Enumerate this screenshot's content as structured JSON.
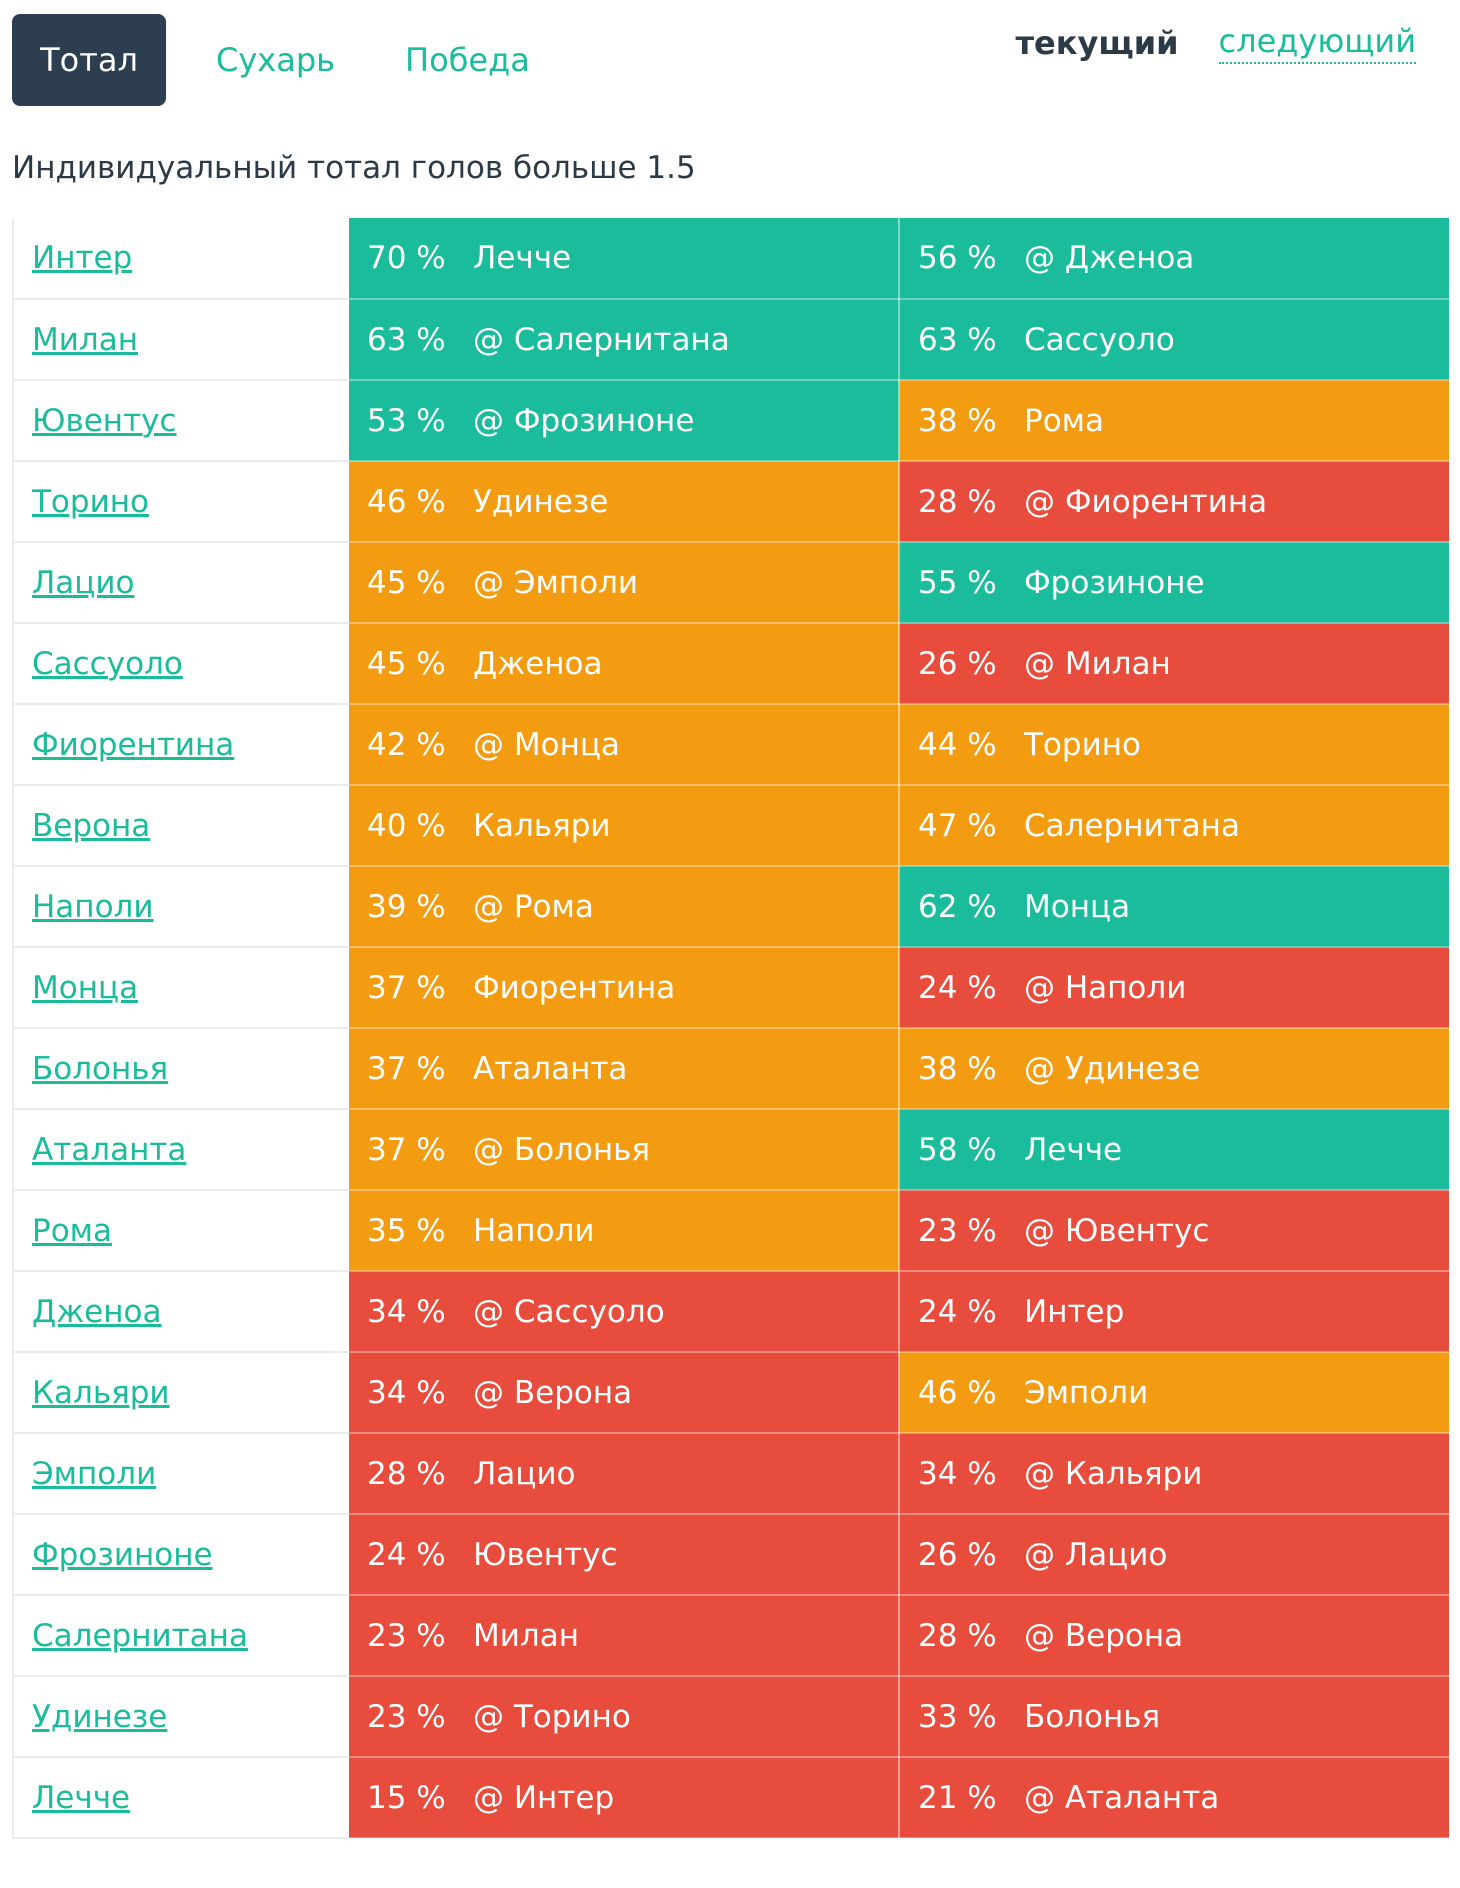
{
  "tabs": [
    {
      "label": "Тотал",
      "active": true
    },
    {
      "label": "Сухарь",
      "active": false
    },
    {
      "label": "Победа",
      "active": false
    }
  ],
  "round": {
    "current": "текущий",
    "next": "следующий"
  },
  "subtitle": "Индивидуальный тотал голов больше 1.5",
  "colors": {
    "green": "#1abc9c",
    "orange": "#f39c12",
    "red": "#e74c3c",
    "dark": "#2c3e50"
  },
  "rows": [
    {
      "team": "Интер",
      "cur_pct": "70 %",
      "cur_opp": "Лечче",
      "cur_color": "green",
      "next_pct": "56 %",
      "next_opp": "@ Дженоа",
      "next_color": "green"
    },
    {
      "team": "Милан",
      "cur_pct": "63 %",
      "cur_opp": "@ Салернитана",
      "cur_color": "green",
      "next_pct": "63 %",
      "next_opp": "Сассуоло",
      "next_color": "green"
    },
    {
      "team": "Ювентус",
      "cur_pct": "53 %",
      "cur_opp": "@ Фрозиноне",
      "cur_color": "green",
      "next_pct": "38 %",
      "next_opp": "Рома",
      "next_color": "orange"
    },
    {
      "team": "Торино",
      "cur_pct": "46 %",
      "cur_opp": "Удинезе",
      "cur_color": "orange",
      "next_pct": "28 %",
      "next_opp": "@ Фиорентина",
      "next_color": "red"
    },
    {
      "team": "Лацио",
      "cur_pct": "45 %",
      "cur_opp": "@ Эмполи",
      "cur_color": "orange",
      "next_pct": "55 %",
      "next_opp": "Фрозиноне",
      "next_color": "green"
    },
    {
      "team": "Сассуоло",
      "cur_pct": "45 %",
      "cur_opp": "Дженоа",
      "cur_color": "orange",
      "next_pct": "26 %",
      "next_opp": "@ Милан",
      "next_color": "red"
    },
    {
      "team": "Фиорентина",
      "cur_pct": "42 %",
      "cur_opp": "@ Монца",
      "cur_color": "orange",
      "next_pct": "44 %",
      "next_opp": "Торино",
      "next_color": "orange"
    },
    {
      "team": "Верона",
      "cur_pct": "40 %",
      "cur_opp": "Кальяри",
      "cur_color": "orange",
      "next_pct": "47 %",
      "next_opp": "Салернитана",
      "next_color": "orange"
    },
    {
      "team": "Наполи",
      "cur_pct": "39 %",
      "cur_opp": "@ Рома",
      "cur_color": "orange",
      "next_pct": "62 %",
      "next_opp": "Монца",
      "next_color": "green"
    },
    {
      "team": "Монца",
      "cur_pct": "37 %",
      "cur_opp": "Фиорентина",
      "cur_color": "orange",
      "next_pct": "24 %",
      "next_opp": "@ Наполи",
      "next_color": "red"
    },
    {
      "team": "Болонья",
      "cur_pct": "37 %",
      "cur_opp": "Аталанта",
      "cur_color": "orange",
      "next_pct": "38 %",
      "next_opp": "@ Удинезе",
      "next_color": "orange"
    },
    {
      "team": "Аталанта",
      "cur_pct": "37 %",
      "cur_opp": "@ Болонья",
      "cur_color": "orange",
      "next_pct": "58 %",
      "next_opp": "Лечче",
      "next_color": "green"
    },
    {
      "team": "Рома",
      "cur_pct": "35 %",
      "cur_opp": "Наполи",
      "cur_color": "orange",
      "next_pct": "23 %",
      "next_opp": "@ Ювентус",
      "next_color": "red"
    },
    {
      "team": "Дженоа",
      "cur_pct": "34 %",
      "cur_opp": "@ Сассуоло",
      "cur_color": "red",
      "next_pct": "24 %",
      "next_opp": "Интер",
      "next_color": "red"
    },
    {
      "team": "Кальяри",
      "cur_pct": "34 %",
      "cur_opp": "@ Верона",
      "cur_color": "red",
      "next_pct": "46 %",
      "next_opp": "Эмполи",
      "next_color": "orange"
    },
    {
      "team": "Эмполи",
      "cur_pct": "28 %",
      "cur_opp": "Лацио",
      "cur_color": "red",
      "next_pct": "34 %",
      "next_opp": "@ Кальяри",
      "next_color": "red"
    },
    {
      "team": "Фрозиноне",
      "cur_pct": "24 %",
      "cur_opp": "Ювентус",
      "cur_color": "red",
      "next_pct": "26 %",
      "next_opp": "@ Лацио",
      "next_color": "red"
    },
    {
      "team": "Салернитана",
      "cur_pct": "23 %",
      "cur_opp": "Милан",
      "cur_color": "red",
      "next_pct": "28 %",
      "next_opp": "@ Верона",
      "next_color": "red"
    },
    {
      "team": "Удинезе",
      "cur_pct": "23 %",
      "cur_opp": "@ Торино",
      "cur_color": "red",
      "next_pct": "33 %",
      "next_opp": "Болонья",
      "next_color": "red"
    },
    {
      "team": "Лечче",
      "cur_pct": "15 %",
      "cur_opp": "@ Интер",
      "cur_color": "red",
      "next_pct": "21 %",
      "next_opp": "@ Аталанта",
      "next_color": "red"
    }
  ]
}
